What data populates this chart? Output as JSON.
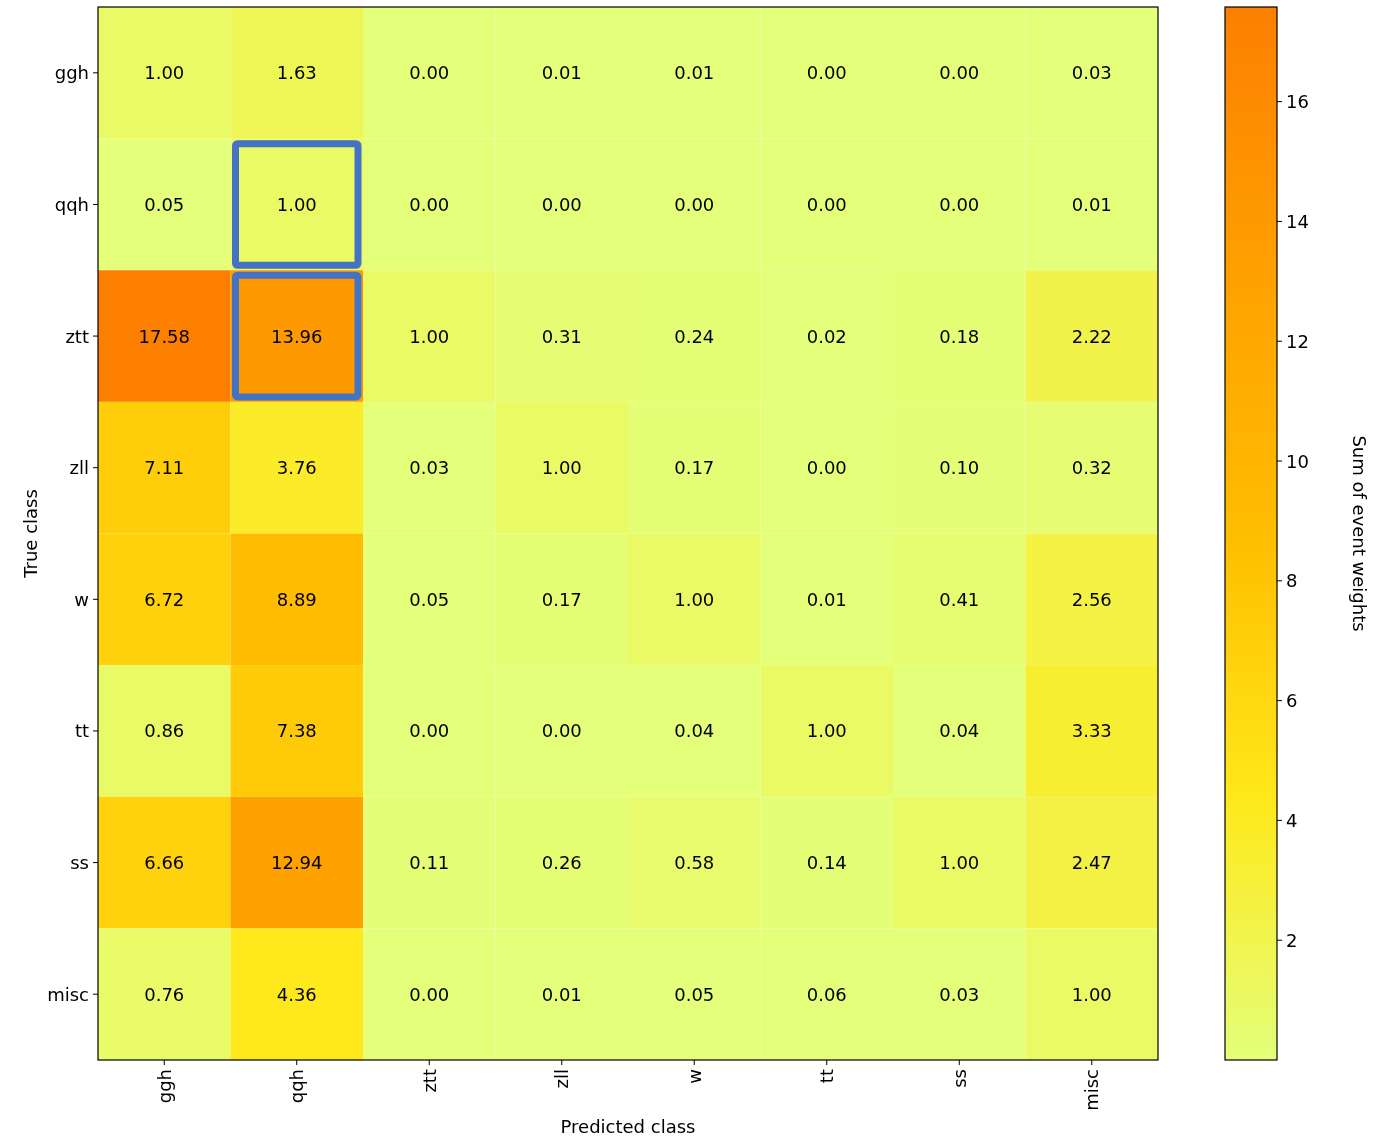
{
  "chart_data": {
    "type": "heatmap",
    "xlabel": "Predicted class",
    "ylabel": "True class",
    "clabel": "Sum of event weights",
    "categories": [
      "ggh",
      "qqh",
      "ztt",
      "zll",
      "w",
      "tt",
      "ss",
      "misc"
    ],
    "y_categories": [
      "ggh",
      "qqh",
      "ztt",
      "zll",
      "w",
      "tt",
      "ss",
      "misc"
    ],
    "cells": [
      [
        1.0,
        1.63,
        0.0,
        0.01,
        0.01,
        0.0,
        0.0,
        0.03
      ],
      [
        0.05,
        1.0,
        0.0,
        0.0,
        0.0,
        0.0,
        0.0,
        0.01
      ],
      [
        17.58,
        13.96,
        1.0,
        0.31,
        0.24,
        0.02,
        0.18,
        2.22
      ],
      [
        7.11,
        3.76,
        0.03,
        1.0,
        0.17,
        0.0,
        0.1,
        0.32
      ],
      [
        6.72,
        8.89,
        0.05,
        0.17,
        1.0,
        0.01,
        0.41,
        2.56
      ],
      [
        0.86,
        7.38,
        0.0,
        0.0,
        0.04,
        1.0,
        0.04,
        3.33
      ],
      [
        6.66,
        12.94,
        0.11,
        0.26,
        0.58,
        0.14,
        1.0,
        2.47
      ],
      [
        0.76,
        4.36,
        0.0,
        0.01,
        0.05,
        0.06,
        0.03,
        1.0
      ]
    ],
    "cell_labels": [
      [
        "1.00",
        "1.63",
        "0.00",
        "0.01",
        "0.01",
        "0.00",
        "0.00",
        "0.03"
      ],
      [
        "0.05",
        "1.00",
        "0.00",
        "0.00",
        "0.00",
        "0.00",
        "0.00",
        "0.01"
      ],
      [
        "17.58",
        "13.96",
        "1.00",
        "0.31",
        "0.24",
        "0.02",
        "0.18",
        "2.22"
      ],
      [
        "7.11",
        "3.76",
        "0.03",
        "1.00",
        "0.17",
        "0.00",
        "0.10",
        "0.32"
      ],
      [
        "6.72",
        "8.89",
        "0.05",
        "0.17",
        "1.00",
        "0.01",
        "0.41",
        "2.56"
      ],
      [
        "0.86",
        "7.38",
        "0.00",
        "0.00",
        "0.04",
        "1.00",
        "0.04",
        "3.33"
      ],
      [
        "6.66",
        "12.94",
        "0.11",
        "0.26",
        "0.58",
        "0.14",
        "1.00",
        "2.47"
      ],
      [
        "0.76",
        "4.36",
        "0.00",
        "0.01",
        "0.05",
        "0.06",
        "0.03",
        "1.00"
      ]
    ],
    "clim": [
      0,
      17.58
    ],
    "cticks": [
      2,
      4,
      6,
      8,
      10,
      12,
      14,
      16
    ]
  }
}
